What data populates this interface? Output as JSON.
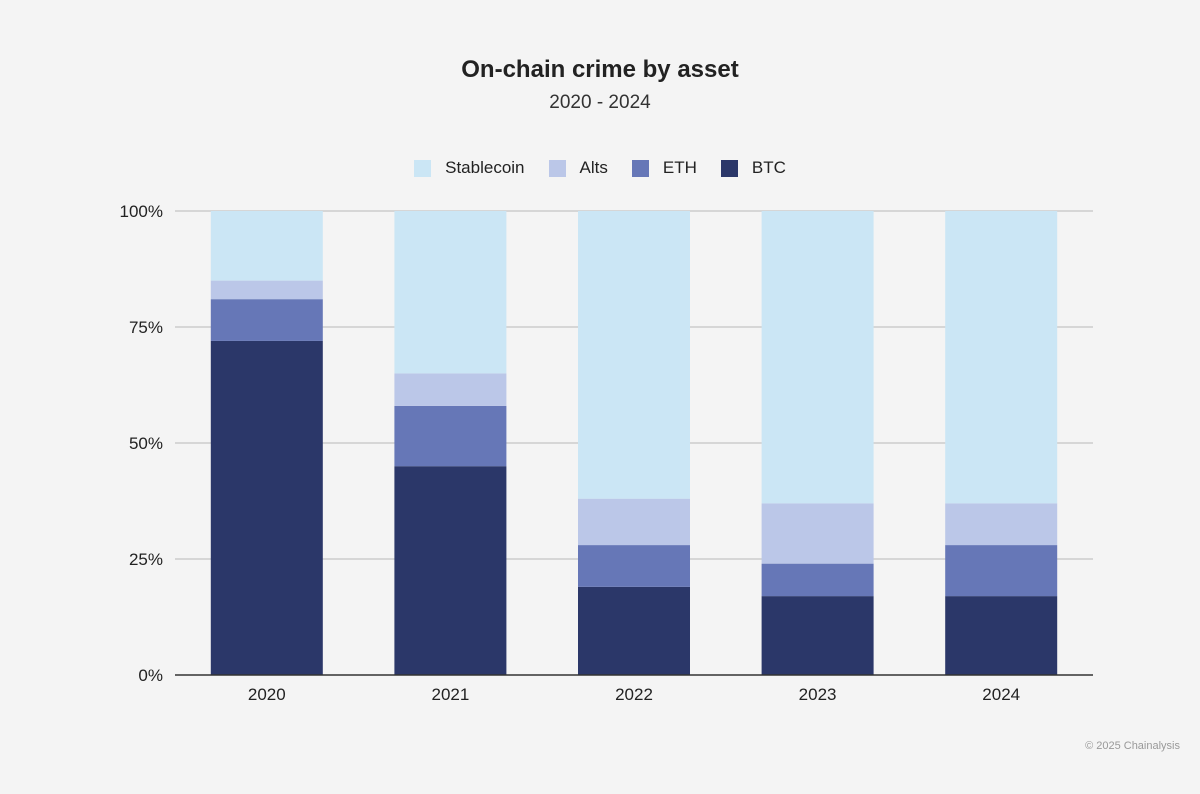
{
  "chart_data": {
    "type": "bar",
    "stacked": true,
    "title": "On-chain crime by asset",
    "subtitle": "2020 - 2024",
    "categories": [
      "2020",
      "2021",
      "2022",
      "2023",
      "2024"
    ],
    "series": [
      {
        "name": "BTC",
        "color": "#2b3769",
        "values": [
          72,
          45,
          19,
          17,
          17
        ]
      },
      {
        "name": "ETH",
        "color": "#6677b7",
        "values": [
          9,
          13,
          9,
          7,
          11
        ]
      },
      {
        "name": "Alts",
        "color": "#bbc7e8",
        "values": [
          4,
          7,
          10,
          13,
          9
        ]
      },
      {
        "name": "Stablecoin",
        "color": "#cbe6f5",
        "values": [
          15,
          35,
          62,
          63,
          63
        ]
      }
    ],
    "legend_order": [
      "Stablecoin",
      "Alts",
      "ETH",
      "BTC"
    ],
    "legend_position": "top-center",
    "ylim": [
      0,
      100
    ],
    "yticks": [
      0,
      25,
      50,
      75,
      100
    ],
    "ytick_labels": [
      "0%",
      "25%",
      "50%",
      "75%",
      "100%"
    ],
    "grid": true,
    "xlabel": "",
    "ylabel": ""
  },
  "footer": {
    "copyright": "© 2025 Chainalysis"
  }
}
